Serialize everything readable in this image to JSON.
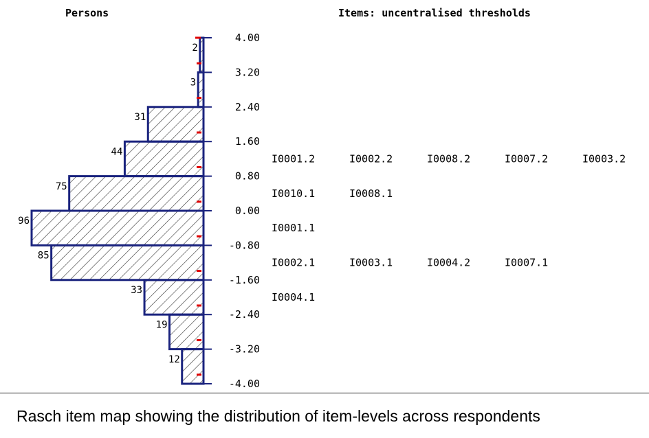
{
  "headers": {
    "persons": "Persons",
    "items": "Items: uncentralised thresholds"
  },
  "caption": "Rasch item map showing the distribution of item-levels across respondents",
  "chart_data": {
    "type": "bar",
    "orientation": "horizontal",
    "y_axis": {
      "ticks": [
        "4.00",
        "3.20",
        "2.40",
        "1.60",
        "0.80",
        "0.00",
        "-0.80",
        "-1.60",
        "-2.40",
        "-3.20",
        "-4.00"
      ],
      "range": [
        -4.0,
        4.0
      ]
    },
    "person_bins": [
      {
        "from": 3.2,
        "to": 4.0,
        "count": 2
      },
      {
        "from": 2.4,
        "to": 3.2,
        "count": 3
      },
      {
        "from": 1.6,
        "to": 2.4,
        "count": 31
      },
      {
        "from": 0.8,
        "to": 1.6,
        "count": 44
      },
      {
        "from": 0.0,
        "to": 0.8,
        "count": 75
      },
      {
        "from": -0.8,
        "to": 0.0,
        "count": 96
      },
      {
        "from": -1.6,
        "to": -0.8,
        "count": 85
      },
      {
        "from": -2.4,
        "to": -1.6,
        "count": 33
      },
      {
        "from": -3.2,
        "to": -2.4,
        "count": 19
      },
      {
        "from": -4.0,
        "to": -3.2,
        "count": 12
      }
    ],
    "item_rows": [
      {
        "level": 1.2,
        "items": [
          "I0001.2",
          "I0002.2",
          "I0008.2",
          "I0007.2",
          "I0003.2"
        ]
      },
      {
        "level": 0.4,
        "items": [
          "I0010.1",
          "I0008.1"
        ]
      },
      {
        "level": -0.4,
        "items": [
          "I0001.1"
        ]
      },
      {
        "level": -1.2,
        "items": [
          "I0002.1",
          "I0003.1",
          "I0004.2",
          "I0007.1"
        ]
      },
      {
        "level": -2.0,
        "items": [
          "I0004.1"
        ]
      }
    ],
    "colors": {
      "bar_border": "#1a237e",
      "hatch": "#333333",
      "marker": "#e00000",
      "axis": "#1a237e"
    }
  }
}
